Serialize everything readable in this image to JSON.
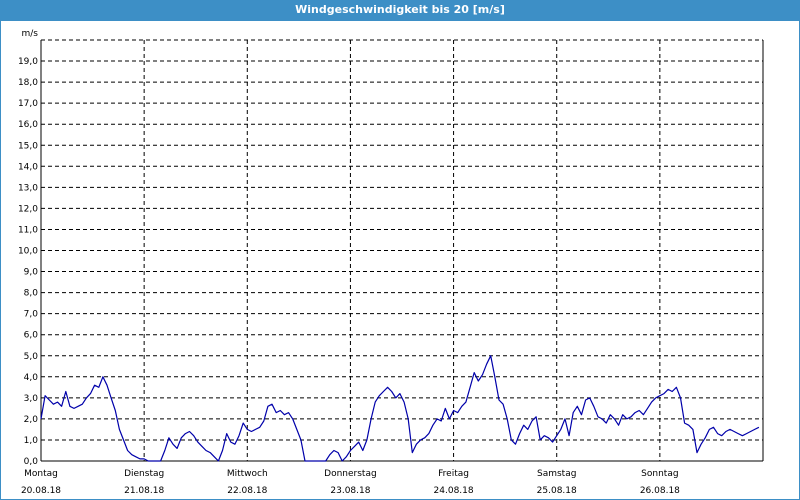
{
  "window": {
    "title": "Windgeschwindigkeit bis 20 [m/s]"
  },
  "chart_data": {
    "type": "line",
    "title": "Windgeschwindigkeit bis 20 [m/s]",
    "ylabel": "m/s",
    "ylim": [
      0,
      20
    ],
    "yticks": [
      "0,0",
      "1,0",
      "2,0",
      "3,0",
      "4,0",
      "5,0",
      "6,0",
      "7,0",
      "8,0",
      "9,0",
      "10,0",
      "11,0",
      "12,0",
      "13,0",
      "14,0",
      "15,0",
      "16,0",
      "17,0",
      "18,0",
      "19,0"
    ],
    "days": [
      {
        "weekday": "Montag",
        "date": "20.08.18"
      },
      {
        "weekday": "Dienstag",
        "date": "21.08.18"
      },
      {
        "weekday": "Mittwoch",
        "date": "22.08.18"
      },
      {
        "weekday": "Donnerstag",
        "date": "23.08.18"
      },
      {
        "weekday": "Freitag",
        "date": "24.08.18"
      },
      {
        "weekday": "Samstag",
        "date": "25.08.18"
      },
      {
        "weekday": "Sonntag",
        "date": "26.08.18"
      }
    ],
    "grid": true,
    "line_color": "#0000aa",
    "series": [
      {
        "x": [
          0,
          0.04,
          0.08,
          0.12,
          0.16,
          0.2,
          0.24,
          0.28,
          0.32,
          0.36,
          0.4,
          0.44,
          0.48,
          0.52,
          0.56,
          0.6,
          0.64,
          0.68,
          0.72,
          0.76,
          0.8,
          0.84,
          0.88,
          0.92,
          0.96,
          1.0,
          1.04,
          1.08,
          1.12,
          1.16,
          1.2,
          1.24,
          1.28,
          1.32,
          1.36,
          1.4,
          1.44,
          1.48,
          1.52,
          1.56,
          1.6,
          1.64,
          1.68,
          1.72,
          1.76,
          1.8,
          1.84,
          1.88,
          1.92,
          1.96,
          2.0,
          2.04,
          2.08,
          2.12,
          2.16,
          2.2,
          2.24,
          2.28,
          2.32,
          2.36,
          2.4,
          2.44,
          2.48,
          2.52,
          2.56,
          2.6,
          2.64,
          2.68,
          2.72,
          2.76,
          2.8,
          2.84,
          2.88,
          2.92,
          2.96,
          3.0,
          3.04,
          3.08,
          3.12,
          3.16,
          3.2,
          3.24,
          3.28,
          3.32,
          3.36,
          3.4,
          3.44,
          3.48,
          3.52,
          3.56,
          3.6,
          3.64,
          3.68,
          3.72,
          3.76,
          3.8,
          3.84,
          3.88,
          3.92,
          3.96,
          4.0,
          4.04,
          4.08,
          4.12,
          4.16,
          4.2,
          4.24,
          4.28,
          4.32,
          4.36,
          4.4,
          4.44,
          4.48,
          4.52,
          4.56,
          4.6,
          4.64,
          4.68,
          4.72,
          4.76,
          4.8,
          4.84,
          4.88,
          4.92,
          4.96,
          5.0,
          5.04,
          5.08,
          5.12,
          5.16,
          5.2,
          5.24,
          5.28,
          5.32,
          5.36,
          5.4,
          5.44,
          5.48,
          5.52,
          5.56,
          5.6,
          5.64,
          5.68,
          5.72,
          5.76,
          5.8,
          5.84,
          5.88,
          5.92,
          5.96,
          6.0,
          6.04,
          6.08,
          6.12,
          6.16,
          6.2,
          6.24,
          6.28,
          6.32,
          6.36,
          6.4,
          6.44,
          6.48,
          6.52,
          6.56,
          6.6,
          6.64,
          6.68,
          6.72,
          6.76,
          6.8,
          6.84,
          6.88,
          6.92,
          6.96
        ],
        "y": [
          2.0,
          3.1,
          2.9,
          2.7,
          2.8,
          2.6,
          3.3,
          2.6,
          2.5,
          2.6,
          2.7,
          3.0,
          3.2,
          3.6,
          3.5,
          4.0,
          3.6,
          3.0,
          2.4,
          1.5,
          1.0,
          0.5,
          0.3,
          0.2,
          0.1,
          0.1,
          0.0,
          0.0,
          0.0,
          0.0,
          0.5,
          1.1,
          0.8,
          0.6,
          1.1,
          1.3,
          1.4,
          1.2,
          0.9,
          0.7,
          0.5,
          0.4,
          0.2,
          0.0,
          0.5,
          1.3,
          0.9,
          0.8,
          1.2,
          1.8,
          1.5,
          1.4,
          1.5,
          1.6,
          1.9,
          2.6,
          2.7,
          2.3,
          2.4,
          2.2,
          2.3,
          2.0,
          1.5,
          1.0,
          0.0,
          0.0,
          0.0,
          0.0,
          0.0,
          0.0,
          0.3,
          0.5,
          0.4,
          0.0,
          0.2,
          0.5,
          0.7,
          0.9,
          0.5,
          1.0,
          2.0,
          2.8,
          3.1,
          3.3,
          3.5,
          3.3,
          3.0,
          3.2,
          2.8,
          2.0,
          0.4,
          0.8,
          1.0,
          1.1,
          1.3,
          1.7,
          2.0,
          1.9,
          2.5,
          2.0,
          2.4,
          2.3,
          2.6,
          2.8,
          3.5,
          4.2,
          3.8,
          4.1,
          4.6,
          5.0,
          4.0,
          2.9,
          2.7,
          2.0,
          1.0,
          0.8,
          1.3,
          1.7,
          1.5,
          1.9,
          2.1,
          1.0,
          1.2,
          1.1,
          0.9,
          1.2,
          1.5,
          2.0,
          1.2,
          2.3,
          2.6,
          2.2,
          2.9,
          3.0,
          2.6,
          2.1,
          2.0,
          1.8,
          2.2,
          2.0,
          1.7,
          2.2,
          2.0,
          2.1,
          2.3,
          2.4,
          2.2,
          2.5,
          2.8,
          3.0,
          3.1,
          3.2,
          3.4,
          3.3,
          3.5,
          3.0,
          1.8,
          1.7,
          1.5,
          0.4,
          0.8,
          1.1,
          1.5,
          1.6,
          1.3,
          1.2,
          1.4,
          1.5,
          1.4,
          1.3,
          1.2,
          1.3,
          1.4,
          1.5,
          1.6
        ]
      }
    ]
  }
}
